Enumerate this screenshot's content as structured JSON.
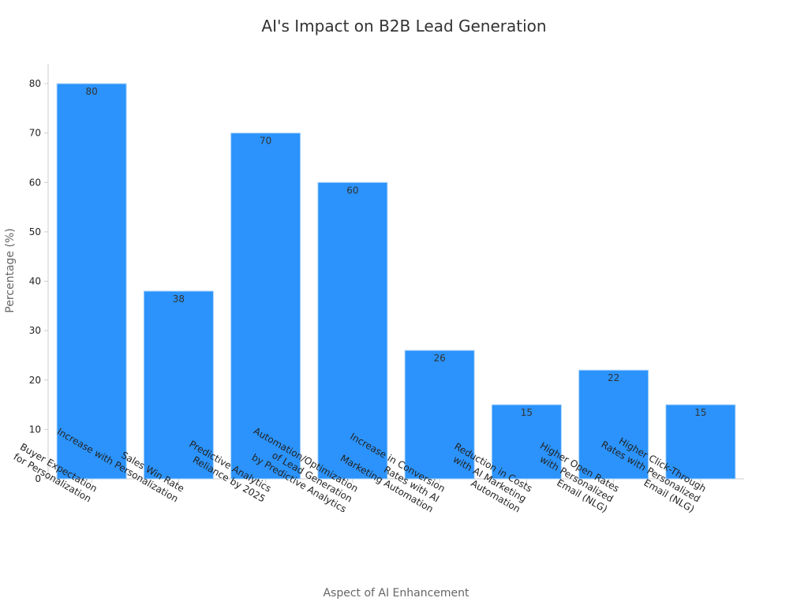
{
  "chart_data": {
    "type": "bar",
    "title": "AI's Impact on B2B Lead Generation",
    "xlabel": "Aspect of AI Enhancement",
    "ylabel": "Percentage (%)",
    "ylim": [
      0,
      84
    ],
    "yticks": [
      0,
      10,
      20,
      30,
      40,
      50,
      60,
      70,
      80
    ],
    "grid": false,
    "categories": [
      [
        "Buyer Expectation",
        "for Personalization"
      ],
      [
        "Sales Win Rate",
        "Increase with Personalization"
      ],
      [
        "Predictive Analytics",
        "Reliance by 2025"
      ],
      [
        "Automation/Optimization",
        "of Lead Generation",
        "by Predictive Analytics"
      ],
      [
        "Increase in Conversion",
        "Rates with AI",
        "Marketing Automation"
      ],
      [
        "Reduction in Costs",
        "with AI Marketing",
        "Automation"
      ],
      [
        "Higher Open Rates",
        "with Personalized",
        "Email (NLG)"
      ],
      [
        "Higher Click-Through",
        "Rates with Personalized",
        "Email (NLG)"
      ]
    ],
    "values": [
      80,
      38,
      70,
      60,
      26,
      15,
      22,
      15
    ],
    "data_labels": [
      "80",
      "38",
      "70",
      "60",
      "26",
      "15",
      "22",
      "15"
    ],
    "colors": {
      "bar": "#2b93fb",
      "bar_edge": "#a9d2fb",
      "axis": "#cccccc",
      "tick_text": "#222222",
      "label_text": "#666666",
      "title_text": "#333333",
      "value_text": "#333333"
    }
  }
}
